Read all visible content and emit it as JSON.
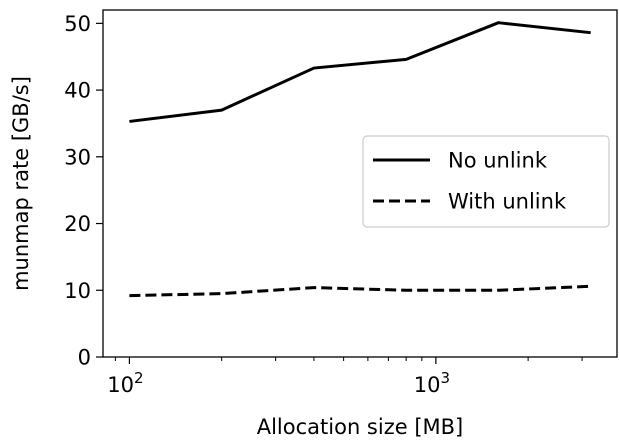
{
  "chart_data": {
    "type": "line",
    "xlabel": "Allocation size [MB]",
    "ylabel": "munmap rate [GB/s]",
    "xscale": "log",
    "xlim": [
      82,
      3900
    ],
    "ylim": [
      0,
      52
    ],
    "x_ticks": [
      {
        "value": 100,
        "base": "10",
        "exp": "2"
      },
      {
        "value": 1000,
        "base": "10",
        "exp": "3"
      }
    ],
    "y_ticks": [
      {
        "value": 0,
        "label": "0"
      },
      {
        "value": 10,
        "label": "10"
      },
      {
        "value": 20,
        "label": "20"
      },
      {
        "value": 30,
        "label": "30"
      },
      {
        "value": 40,
        "label": "40"
      },
      {
        "value": 50,
        "label": "50"
      }
    ],
    "x": [
      100,
      200,
      400,
      800,
      1600,
      3200
    ],
    "series": [
      {
        "name": "No unlink",
        "style": "solid",
        "color": "#000000",
        "values": [
          35.3,
          37.0,
          43.3,
          44.6,
          50.1,
          48.6
        ]
      },
      {
        "name": "With unlink",
        "style": "dashed",
        "color": "#000000",
        "values": [
          9.2,
          9.5,
          10.4,
          10.0,
          10.0,
          10.6
        ]
      }
    ],
    "legend_position": "center-right",
    "grid": false
  }
}
